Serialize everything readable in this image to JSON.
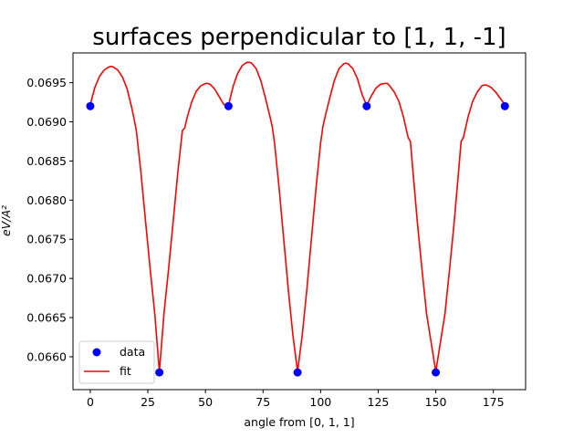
{
  "chart_data": {
    "type": "line",
    "title": "surfaces perpendicular to [1, 1, -1]",
    "xlabel": "angle from [0, 1, 1]",
    "ylabel": "eV/A²",
    "xlim": [
      -7.5,
      189
    ],
    "ylim": [
      0.06558,
      0.06988
    ],
    "xticks": [
      0,
      25,
      50,
      75,
      100,
      125,
      150,
      175
    ],
    "xtick_labels": [
      "0",
      "25",
      "50",
      "75",
      "100",
      "125",
      "150",
      "175"
    ],
    "yticks": [
      0.066,
      0.0665,
      0.067,
      0.0675,
      0.068,
      0.0685,
      0.069,
      0.0695
    ],
    "ytick_labels": [
      "0.0660",
      "0.0665",
      "0.0670",
      "0.0675",
      "0.0680",
      "0.0685",
      "0.0690",
      "0.0695"
    ],
    "grid": false,
    "legend_position": "lower-left",
    "series": [
      {
        "name": "data",
        "kind": "scatter",
        "color": "#0000ff",
        "x": [
          0,
          30,
          60,
          90,
          120,
          150,
          180
        ],
        "y": [
          0.0692,
          0.0658,
          0.0692,
          0.0658,
          0.0692,
          0.0658,
          0.0692
        ]
      },
      {
        "name": "fit",
        "kind": "line",
        "color": "#ff0000",
        "x": [
          0,
          2,
          4,
          6,
          8,
          9,
          10,
          12,
          14,
          16,
          18,
          19,
          20,
          22,
          24,
          26,
          28,
          30,
          32,
          34,
          36,
          38,
          40,
          41,
          42,
          44,
          46,
          48,
          50,
          51,
          52,
          54,
          56,
          58,
          60,
          62,
          64,
          66,
          68,
          69,
          70,
          72,
          74,
          76,
          78,
          79,
          80,
          82,
          84,
          86,
          88,
          90,
          92,
          94,
          96,
          98,
          100,
          101,
          102,
          104,
          106,
          108,
          110,
          111,
          112,
          114,
          116,
          118,
          120,
          122,
          124,
          126,
          128,
          129,
          130,
          132,
          134,
          136,
          138,
          139,
          140,
          142,
          144,
          146,
          148,
          150,
          152,
          154,
          156,
          158,
          160,
          161,
          162,
          164,
          166,
          168,
          170,
          171,
          172,
          174,
          176,
          178,
          180
        ],
        "y": [
          0.06922,
          0.06944,
          0.06958,
          0.06966,
          0.0697,
          0.06971,
          0.0697,
          0.06966,
          0.06957,
          0.06942,
          0.06918,
          0.06904,
          0.06889,
          0.06835,
          0.06773,
          0.06712,
          0.06655,
          0.06581,
          0.06655,
          0.06712,
          0.06773,
          0.06835,
          0.06889,
          0.06892,
          0.06905,
          0.06925,
          0.06939,
          0.06946,
          0.06949,
          0.06949,
          0.06948,
          0.06942,
          0.06932,
          0.06922,
          0.06921,
          0.06945,
          0.06962,
          0.06972,
          0.06976,
          0.06976,
          0.06975,
          0.06968,
          0.06953,
          0.06931,
          0.06907,
          0.06894,
          0.06873,
          0.06815,
          0.0675,
          0.06685,
          0.06627,
          0.06581,
          0.06627,
          0.06685,
          0.0675,
          0.06815,
          0.06873,
          0.06894,
          0.06907,
          0.06931,
          0.06953,
          0.06968,
          0.06974,
          0.06975,
          0.06974,
          0.06968,
          0.06955,
          0.06935,
          0.06921,
          0.06933,
          0.06943,
          0.06948,
          0.06949,
          0.06949,
          0.06946,
          0.06938,
          0.06926,
          0.06906,
          0.0688,
          0.06875,
          0.0684,
          0.06772,
          0.06712,
          0.06655,
          0.06618,
          0.06581,
          0.06618,
          0.06655,
          0.06712,
          0.06772,
          0.0684,
          0.06875,
          0.0688,
          0.06906,
          0.06926,
          0.06938,
          0.06946,
          0.06947,
          0.06947,
          0.06944,
          0.06938,
          0.0693,
          0.06922
        ]
      }
    ]
  }
}
